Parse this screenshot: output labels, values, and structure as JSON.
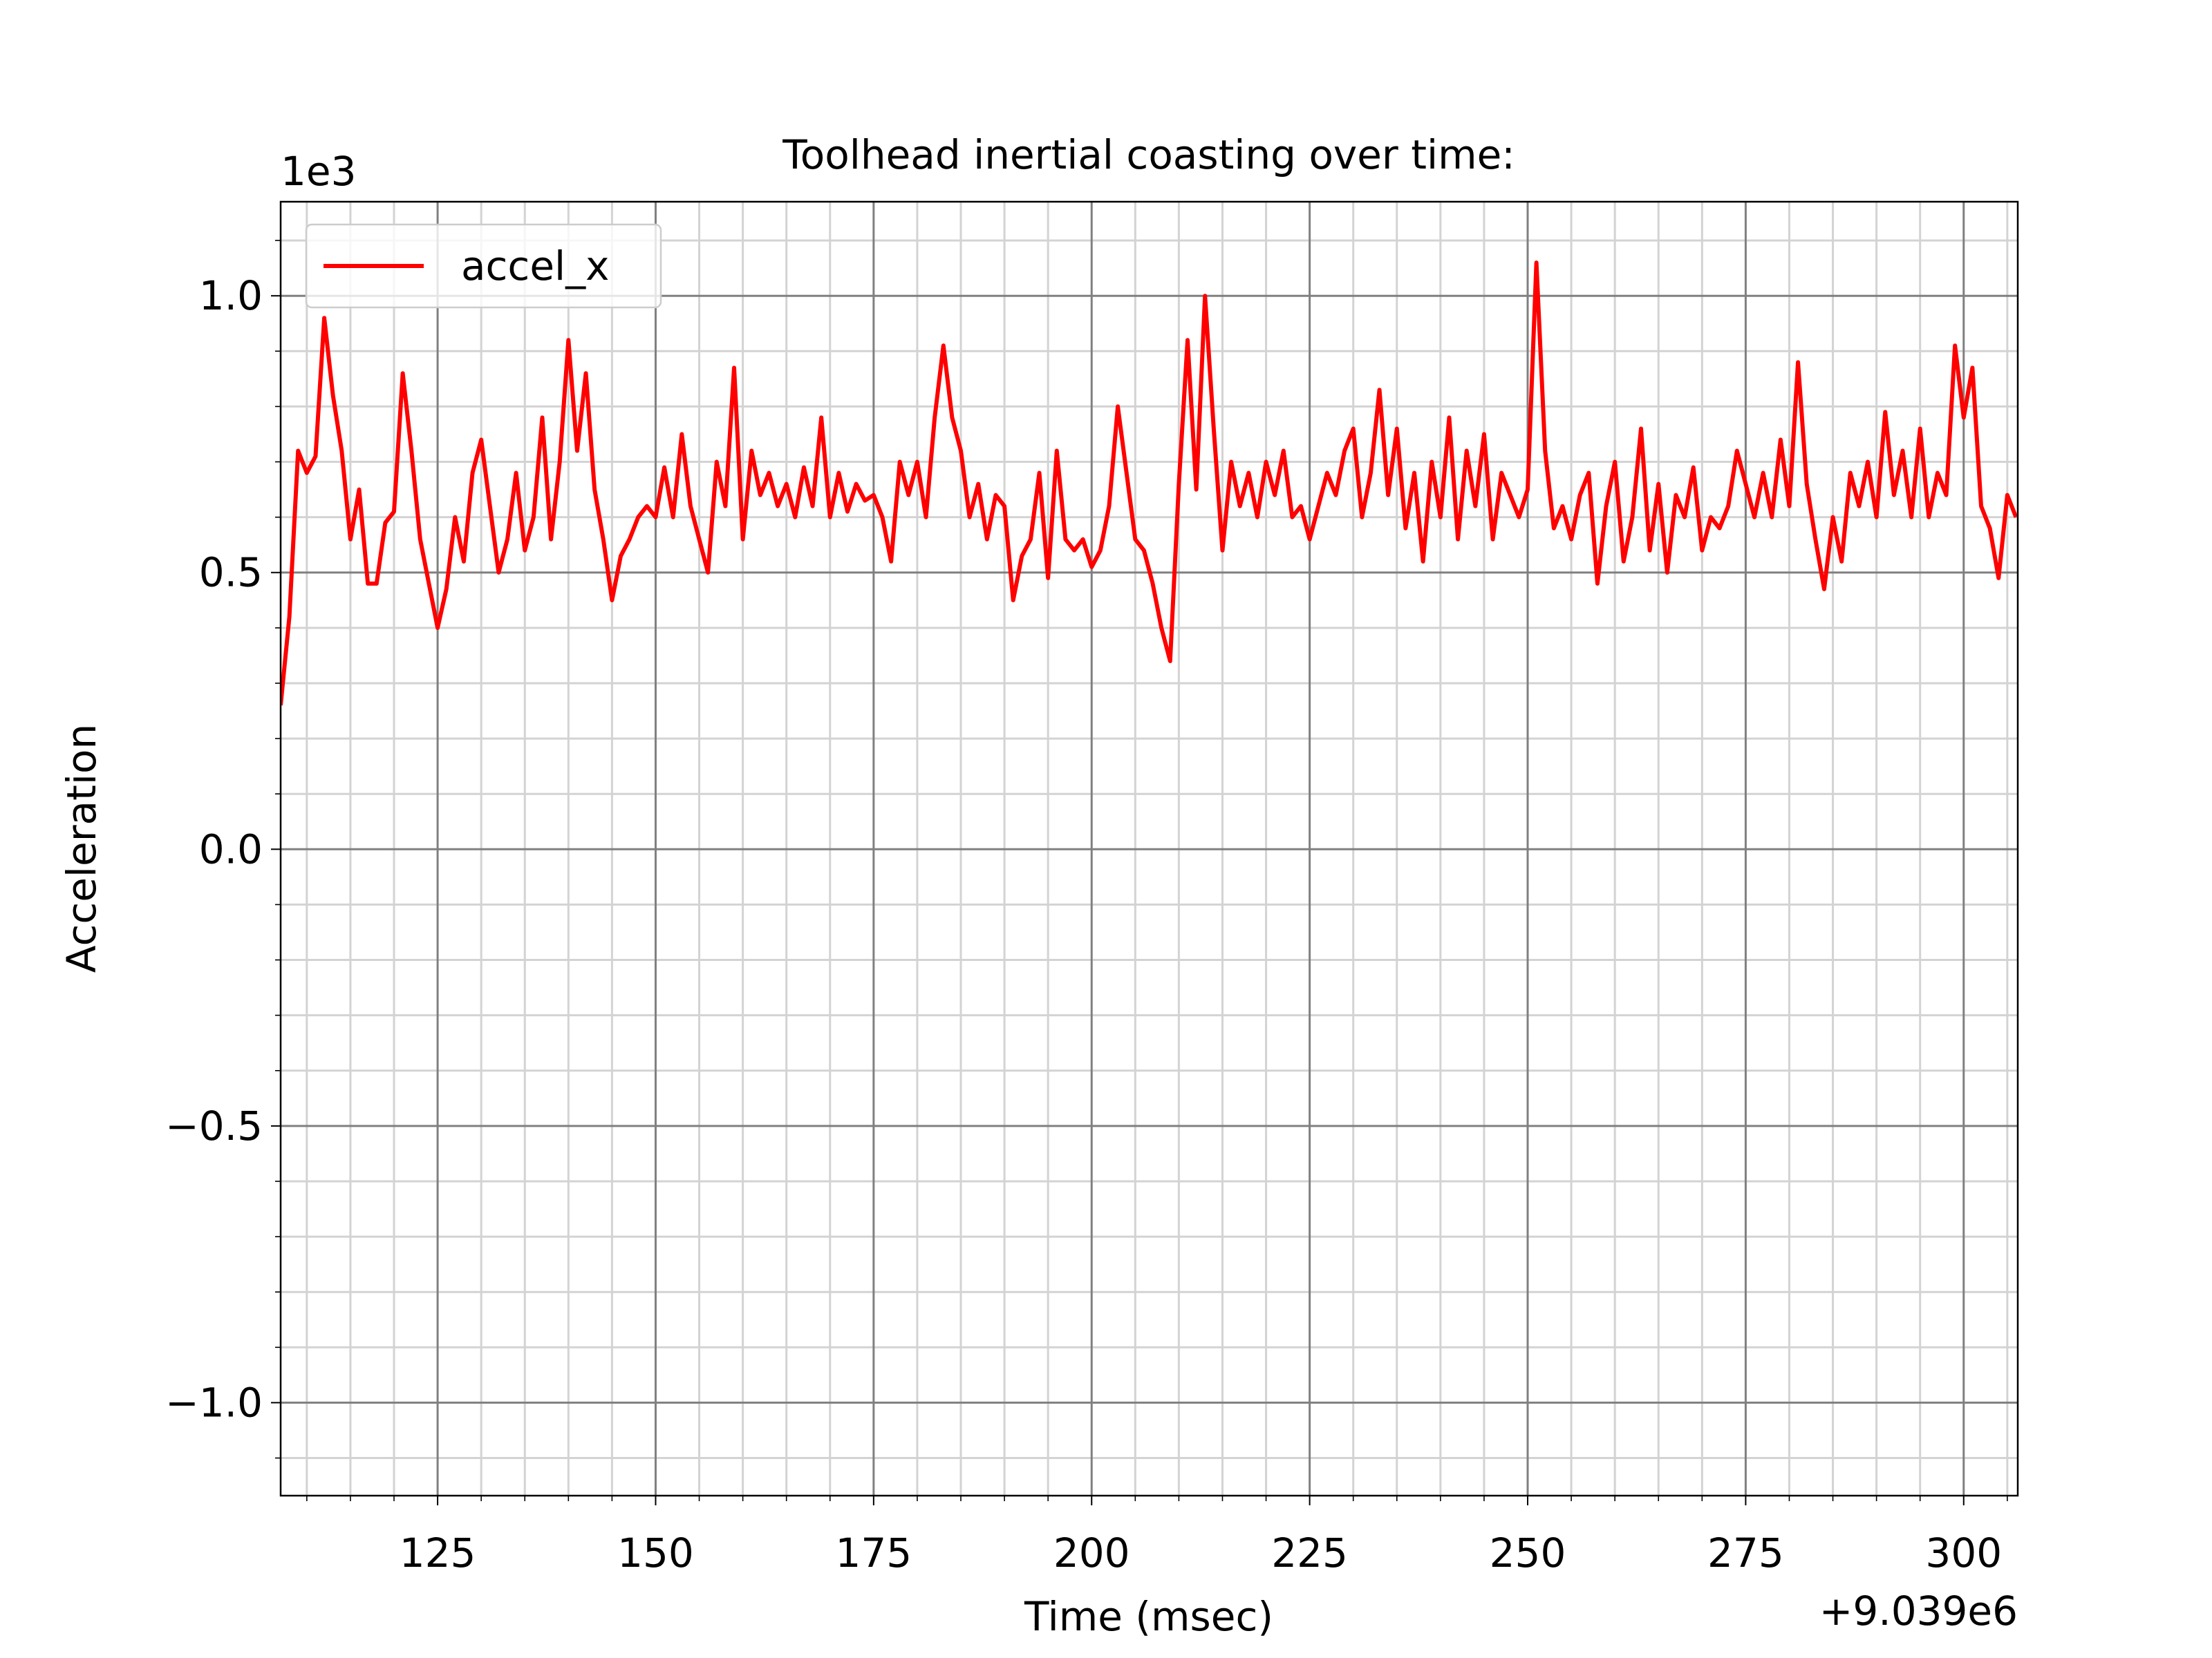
{
  "chart_data": {
    "type": "line",
    "title": "Toolhead inertial coasting over time:",
    "x_label": "Time (msec)",
    "y_label": "Acceleration",
    "x_offset_text": "+9.039e6",
    "y_offset_text": "1e3",
    "xlim": [
      9039107,
      9039306.2
    ],
    "ylim": [
      -1168,
      1170
    ],
    "xticks": [
      {
        "value": 9039125,
        "label": "125"
      },
      {
        "value": 9039150,
        "label": "150"
      },
      {
        "value": 9039175,
        "label": "175"
      },
      {
        "value": 9039200,
        "label": "200"
      },
      {
        "value": 9039225,
        "label": "225"
      },
      {
        "value": 9039250,
        "label": "250"
      },
      {
        "value": 9039275,
        "label": "275"
      },
      {
        "value": 9039300,
        "label": "300"
      }
    ],
    "yticks": [
      {
        "value": -1000,
        "label": "−1.0"
      },
      {
        "value": -500,
        "label": "−0.5"
      },
      {
        "value": 0,
        "label": "0.0"
      },
      {
        "value": 500,
        "label": "0.5"
      },
      {
        "value": 1000,
        "label": "1.0"
      }
    ],
    "xminorticks": [
      9039110,
      9039115,
      9039120,
      9039130,
      9039135,
      9039140,
      9039145,
      9039155,
      9039160,
      9039165,
      9039170,
      9039180,
      9039185,
      9039190,
      9039195,
      9039205,
      9039210,
      9039215,
      9039220,
      9039230,
      9039235,
      9039240,
      9039245,
      9039255,
      9039260,
      9039265,
      9039270,
      9039280,
      9039285,
      9039290,
      9039295,
      9039305
    ],
    "yminorticks": [
      -1100,
      -900,
      -800,
      -700,
      -600,
      -400,
      -300,
      -200,
      -100,
      100,
      200,
      300,
      400,
      600,
      700,
      800,
      900,
      1100
    ],
    "grid": true,
    "legend": "upper left",
    "x": [
      9039107,
      9039108,
      9039109,
      9039110,
      9039111,
      9039112,
      9039113,
      9039114,
      9039115,
      9039116,
      9039117,
      9039118,
      9039119,
      9039120,
      9039121,
      9039122,
      9039123,
      9039124,
      9039125,
      9039126,
      9039127,
      9039128,
      9039129,
      9039130,
      9039131,
      9039132,
      9039133,
      9039134,
      9039135,
      9039136,
      9039137,
      9039138,
      9039139,
      9039140,
      9039141,
      9039142,
      9039143,
      9039144,
      9039145,
      9039146,
      9039147,
      9039148,
      9039149,
      9039150,
      9039151,
      9039152,
      9039153,
      9039154,
      9039155,
      9039156,
      9039157,
      9039158,
      9039159,
      9039160,
      9039161,
      9039162,
      9039163,
      9039164,
      9039165,
      9039166,
      9039167,
      9039168,
      9039169,
      9039170,
      9039171,
      9039172,
      9039173,
      9039174,
      9039175,
      9039176,
      9039177,
      9039178,
      9039179,
      9039180,
      9039181,
      9039182,
      9039183,
      9039184,
      9039185,
      9039186,
      9039187,
      9039188,
      9039189,
      9039190,
      9039191,
      9039192,
      9039193,
      9039194,
      9039195,
      9039196,
      9039197,
      9039198,
      9039199,
      9039200,
      9039201,
      9039202,
      9039203,
      9039204,
      9039205,
      9039206,
      9039207,
      9039208,
      9039209,
      9039210,
      9039211,
      9039212,
      9039213,
      9039214,
      9039215,
      9039216,
      9039217,
      9039218,
      9039219,
      9039220,
      9039221,
      9039222,
      9039223,
      9039224,
      9039225,
      9039226,
      9039227,
      9039228,
      9039229,
      9039230,
      9039231,
      9039232,
      9039233,
      9039234,
      9039235,
      9039236,
      9039237,
      9039238,
      9039239,
      9039240,
      9039241,
      9039242,
      9039243,
      9039244,
      9039245,
      9039246,
      9039247,
      9039248,
      9039249,
      9039250,
      9039251,
      9039252,
      9039253,
      9039254,
      9039255,
      9039256,
      9039257,
      9039258,
      9039259,
      9039260,
      9039261,
      9039262,
      9039263,
      9039264,
      9039265,
      9039266,
      9039267,
      9039268,
      9039269,
      9039270,
      9039271,
      9039272,
      9039273,
      9039274,
      9039275,
      9039276,
      9039277,
      9039278,
      9039279,
      9039280,
      9039281,
      9039282,
      9039283,
      9039284,
      9039285,
      9039286,
      9039287,
      9039288,
      9039289,
      9039290,
      9039291,
      9039292,
      9039293,
      9039294,
      9039295,
      9039296,
      9039297,
      9039298,
      9039299,
      9039300,
      9039301,
      9039302,
      9039303,
      9039304,
      9039305,
      9039306
    ],
    "series": [
      {
        "name": "accel_x",
        "color": "#ff0000",
        "values": [
          260,
          420,
          720,
          680,
          710,
          960,
          820,
          720,
          560,
          650,
          480,
          480,
          590,
          610,
          860,
          720,
          560,
          480,
          400,
          470,
          600,
          520,
          680,
          740,
          620,
          500,
          560,
          680,
          540,
          600,
          780,
          560,
          700,
          920,
          720,
          860,
          650,
          560,
          450,
          530,
          560,
          600,
          620,
          600,
          690,
          600,
          750,
          620,
          560,
          500,
          700,
          620,
          870,
          560,
          720,
          640,
          680,
          620,
          660,
          600,
          690,
          620,
          780,
          600,
          680,
          610,
          660,
          630,
          640,
          600,
          520,
          700,
          640,
          700,
          600,
          780,
          910,
          780,
          720,
          600,
          660,
          560,
          640,
          620,
          450,
          530,
          560,
          680,
          490,
          720,
          560,
          540,
          560,
          510,
          540,
          620,
          800,
          680,
          560,
          540,
          480,
          400,
          340,
          660,
          920,
          650,
          1000,
          760,
          540,
          700,
          620,
          680,
          600,
          700,
          640,
          720,
          600,
          620,
          560,
          620,
          680,
          640,
          720,
          760,
          600,
          680,
          830,
          640,
          760,
          580,
          680,
          520,
          700,
          600,
          780,
          560,
          720,
          620,
          750,
          560,
          680,
          640,
          600,
          650,
          1060,
          720,
          580,
          620,
          560,
          640,
          680,
          480,
          620,
          700,
          520,
          600,
          760,
          540,
          660,
          500,
          640,
          600,
          690,
          540,
          600,
          580,
          620,
          720,
          660,
          600,
          680,
          600,
          740,
          620,
          880,
          660,
          560,
          470,
          600,
          520,
          680,
          620,
          700,
          600,
          790,
          640,
          720,
          600,
          760,
          600,
          680,
          640,
          910,
          780,
          870,
          620,
          580,
          490,
          640,
          600
        ]
      }
    ]
  }
}
